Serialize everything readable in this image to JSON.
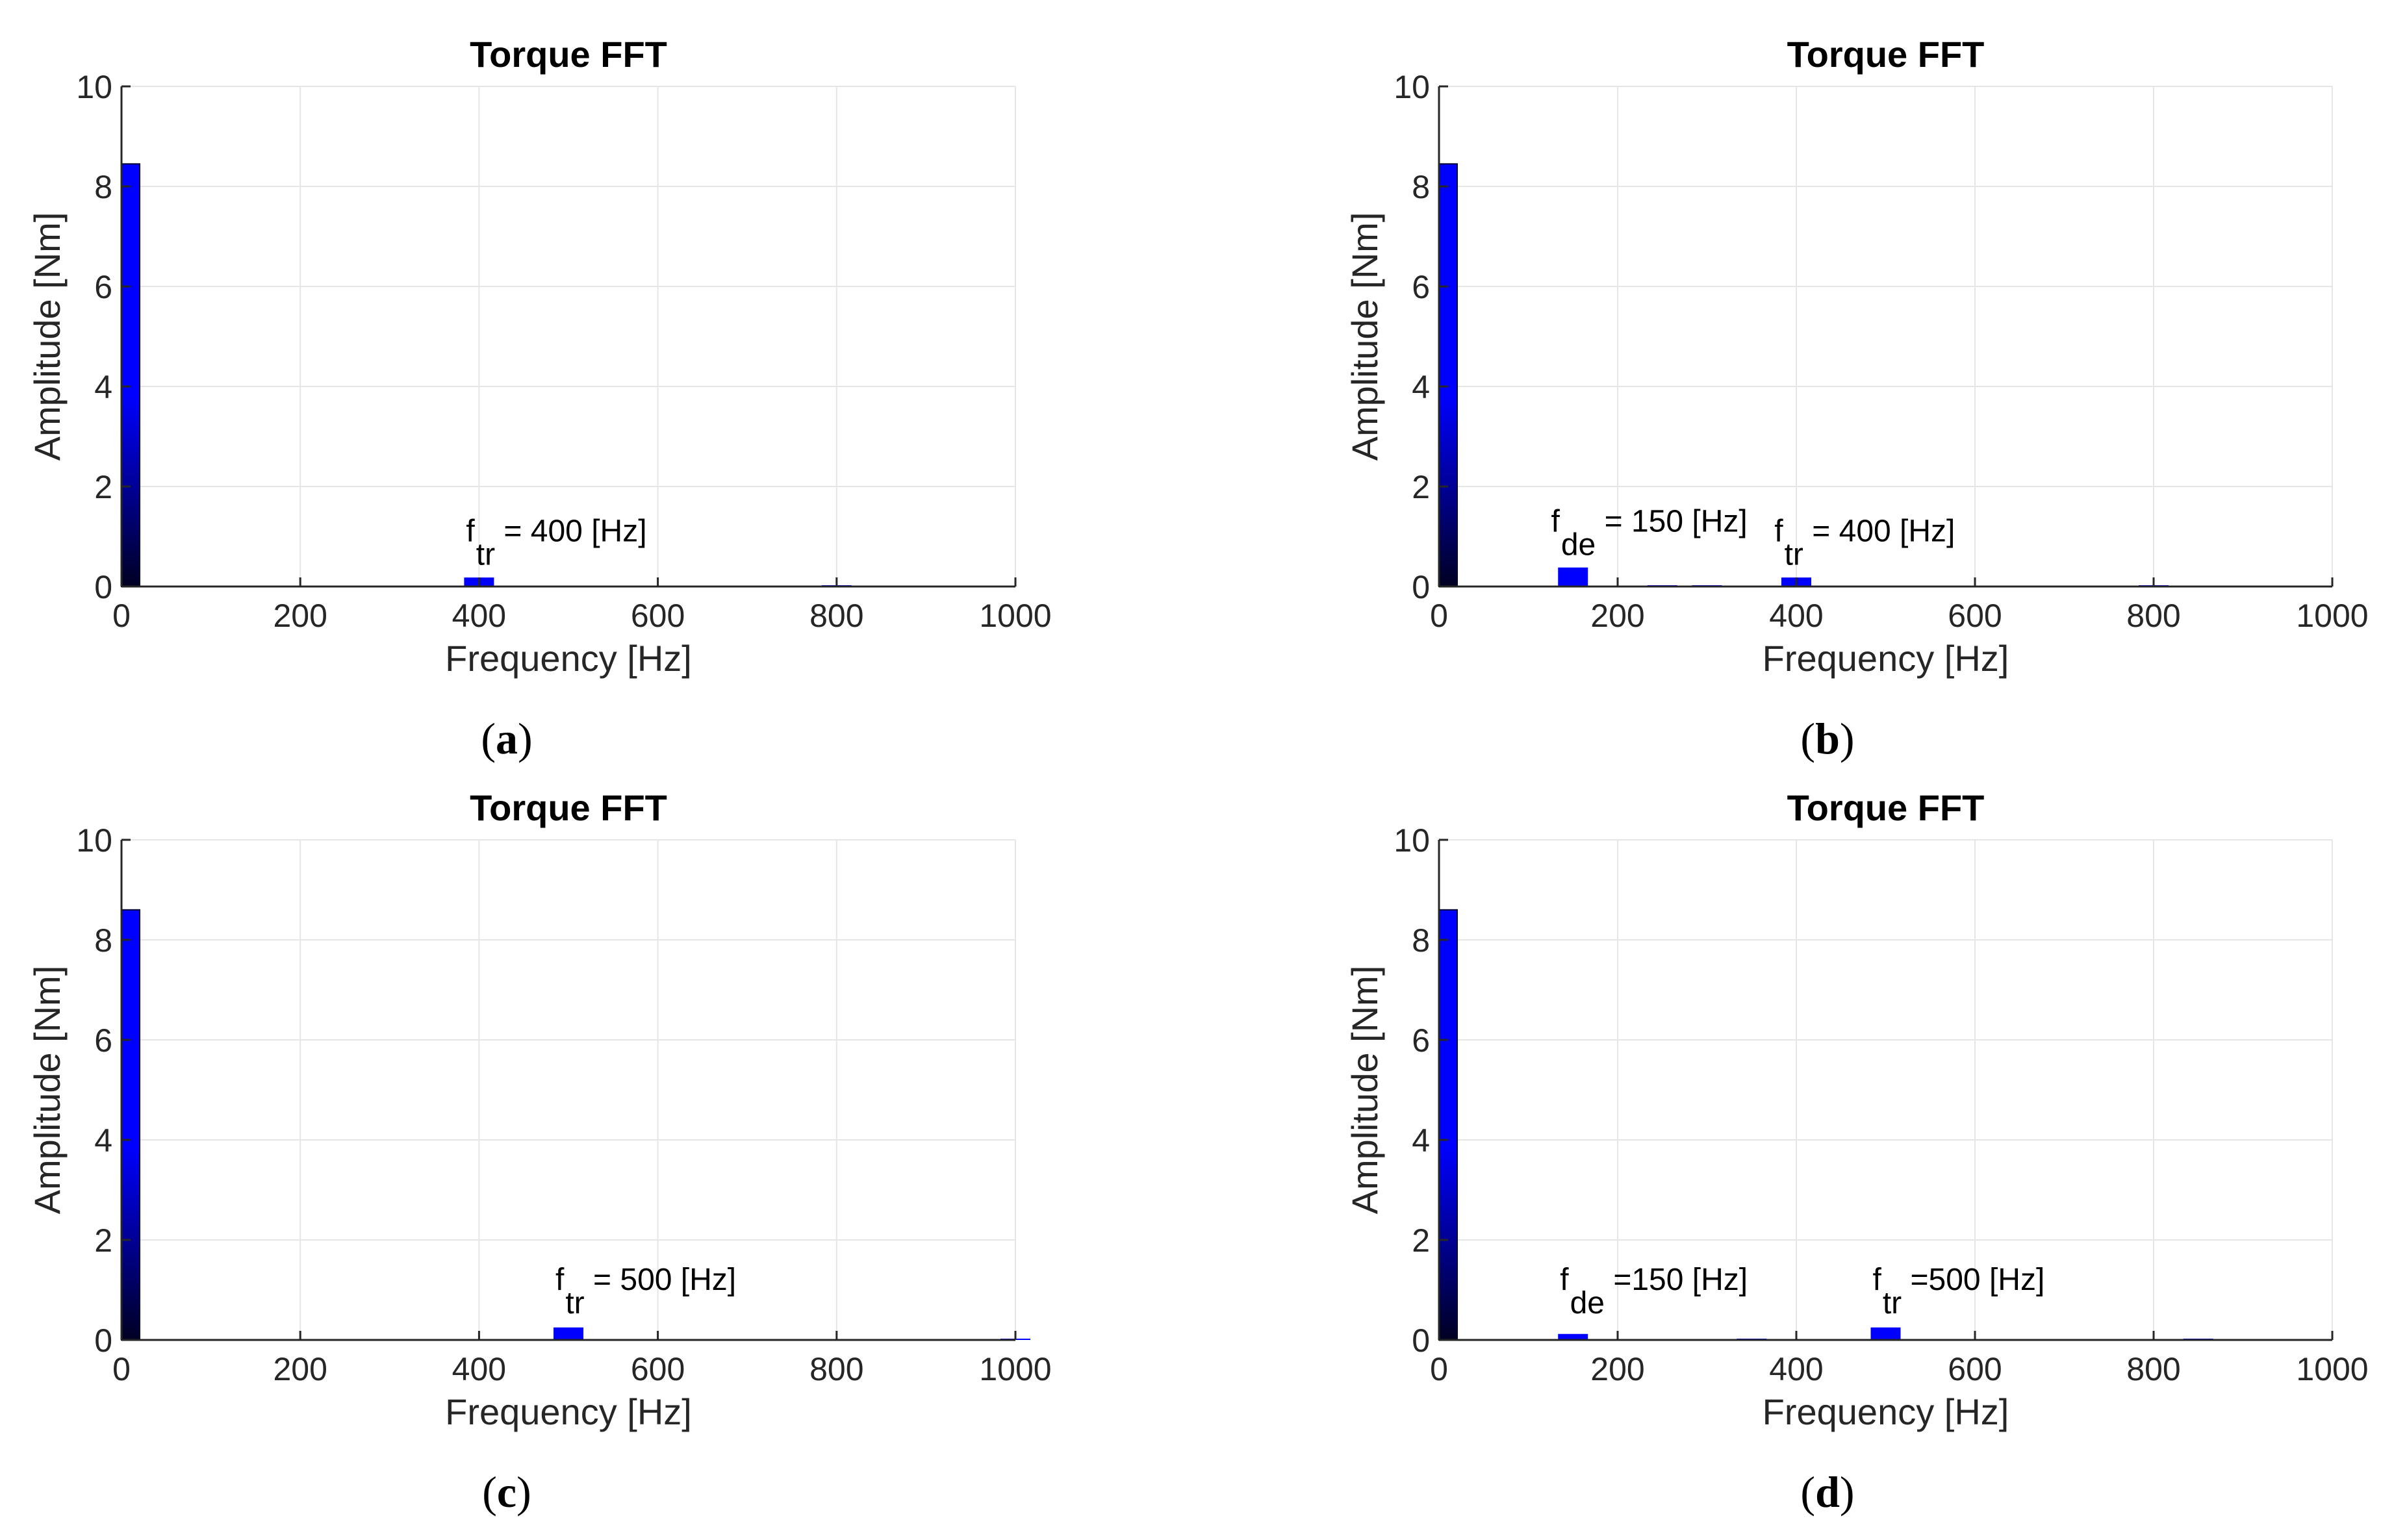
{
  "colors": {
    "bar": "#0000ff",
    "bar_dark": "#000033",
    "grid": "#e6e6e6",
    "axis": "#262626"
  },
  "chart_data": [
    {
      "type": "bar",
      "panel": "(a)",
      "panel_open": "(",
      "panel_letter": "a",
      "panel_close": ")",
      "title": "Torque FFT",
      "xlabel": "Frequency [Hz]",
      "ylabel": "Amplitude [Nm]",
      "xlim": [
        0,
        1000
      ],
      "ylim": [
        0,
        10
      ],
      "xticks": [
        "0",
        "200",
        "400",
        "600",
        "800",
        "1000"
      ],
      "yticks": [
        "0",
        "2",
        "4",
        "6",
        "8",
        "10"
      ],
      "grid": true,
      "bars": [
        {
          "x": 0,
          "value": 8.45,
          "gradient": true
        },
        {
          "x": 400,
          "value": 0.18
        },
        {
          "x": 800,
          "value": 0.02
        }
      ],
      "annotations": [
        {
          "main": "f",
          "sub": "tr",
          "text": " = 400 [Hz]",
          "x": 400,
          "y": 0.9
        }
      ]
    },
    {
      "type": "bar",
      "panel": "(b)",
      "panel_open": "(",
      "panel_letter": "b",
      "panel_close": ")",
      "title": "Torque FFT",
      "xlabel": "Frequency [Hz]",
      "ylabel": "Amplitude [Nm]",
      "xlim": [
        0,
        1000
      ],
      "ylim": [
        0,
        10
      ],
      "xticks": [
        "0",
        "200",
        "400",
        "600",
        "800",
        "1000"
      ],
      "yticks": [
        "0",
        "2",
        "4",
        "6",
        "8",
        "10"
      ],
      "grid": true,
      "bars": [
        {
          "x": 0,
          "value": 8.45,
          "gradient": true
        },
        {
          "x": 150,
          "value": 0.38
        },
        {
          "x": 250,
          "value": 0.02
        },
        {
          "x": 300,
          "value": 0.02
        },
        {
          "x": 400,
          "value": 0.18
        },
        {
          "x": 800,
          "value": 0.02
        }
      ],
      "annotations": [
        {
          "main": "f",
          "sub": "de",
          "text": " = 150 [Hz]",
          "x": 140,
          "y": 1.1
        },
        {
          "main": "f",
          "sub": "tr",
          "text": " = 400 [Hz]",
          "x": 390,
          "y": 0.9
        }
      ]
    },
    {
      "type": "bar",
      "panel": "(c)",
      "panel_open": "(",
      "panel_letter": "c",
      "panel_close": ")",
      "title": "Torque FFT",
      "xlabel": "Frequency [Hz]",
      "ylabel": "Amplitude [Nm]",
      "xlim": [
        0,
        1000
      ],
      "ylim": [
        0,
        10
      ],
      "xticks": [
        "0",
        "200",
        "400",
        "600",
        "800",
        "1000"
      ],
      "yticks": [
        "0",
        "2",
        "4",
        "6",
        "8",
        "10"
      ],
      "grid": true,
      "bars": [
        {
          "x": 0,
          "value": 8.6,
          "gradient": true
        },
        {
          "x": 500,
          "value": 0.25
        },
        {
          "x": 1000,
          "value": 0.02
        }
      ],
      "annotations": [
        {
          "main": "f",
          "sub": "tr",
          "text": " = 500 [Hz]",
          "x": 500,
          "y": 1.0
        }
      ]
    },
    {
      "type": "bar",
      "panel": "(d)",
      "panel_open": "(",
      "panel_letter": "d",
      "panel_close": ")",
      "title": "Torque FFT",
      "xlabel": "Frequency [Hz]",
      "ylabel": "Amplitude [Nm]",
      "xlim": [
        0,
        1000
      ],
      "ylim": [
        0,
        10
      ],
      "xticks": [
        "0",
        "200",
        "400",
        "600",
        "800",
        "1000"
      ],
      "yticks": [
        "0",
        "2",
        "4",
        "6",
        "8",
        "10"
      ],
      "grid": true,
      "bars": [
        {
          "x": 0,
          "value": 8.6,
          "gradient": true
        },
        {
          "x": 150,
          "value": 0.12
        },
        {
          "x": 350,
          "value": 0.02
        },
        {
          "x": 500,
          "value": 0.25
        },
        {
          "x": 850,
          "value": 0.02
        }
      ],
      "annotations": [
        {
          "main": "f",
          "sub": "de",
          "text": " =150 [Hz]",
          "x": 150,
          "y": 1.0
        },
        {
          "main": "f",
          "sub": "tr",
          "text": " =500 [Hz]",
          "x": 500,
          "y": 1.0
        }
      ]
    }
  ]
}
